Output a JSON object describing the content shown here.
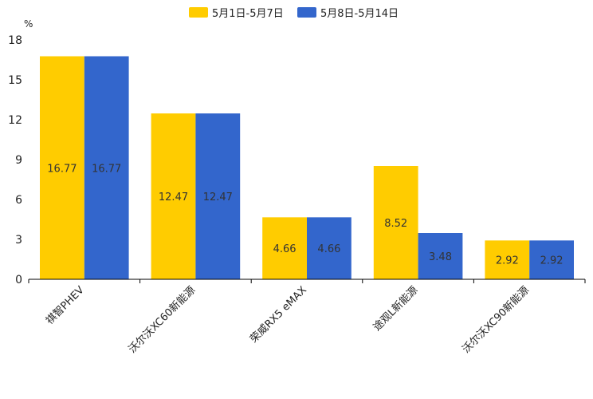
{
  "chart_data": {
    "type": "bar",
    "title": "",
    "ylabel": "%",
    "xlabel": "",
    "ylim": [
      0,
      18
    ],
    "yticks": [
      0,
      3,
      6,
      9,
      12,
      15,
      18
    ],
    "categories": [
      "祺智PHEV",
      "沃尔沃XC60新能源",
      "荣威RX5 eMAX",
      "途观L新能源",
      "沃尔沃XC90新能源"
    ],
    "series": [
      {
        "name": "5月1日-5月7日",
        "color": "#FFCC00",
        "values": [
          16.77,
          12.47,
          4.66,
          8.52,
          2.92
        ]
      },
      {
        "name": "5月8日-5月14日",
        "color": "#3366CC",
        "values": [
          16.77,
          12.47,
          4.66,
          3.48,
          2.92
        ]
      }
    ],
    "legend_position": "top-center",
    "grid": false
  }
}
